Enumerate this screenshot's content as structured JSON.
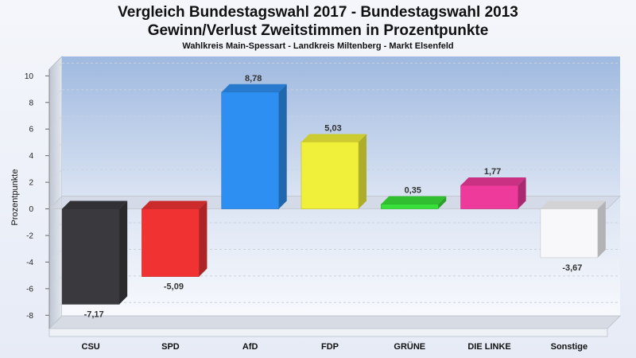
{
  "chart_data": {
    "type": "bar",
    "title_line1": "Vergleich Bundestagswahl 2017 - Bundestagswahl 2013",
    "title_line2": "Gewinn/Verlust Zweitstimmen in Prozentpunkte",
    "subtitle": "Wahlkreis Main-Spessart - Landkreis Miltenberg - Markt Elsenfeld",
    "ylabel": "Prozentpunkte",
    "xlabel": "",
    "ylim": [
      -9,
      10.5
    ],
    "yticks": [
      10,
      8,
      6,
      4,
      2,
      0,
      -2,
      -4,
      -6,
      -8
    ],
    "categories": [
      "CSU",
      "SPD",
      "AfD",
      "FDP",
      "GRÜNE",
      "DIE LINKE",
      "Sonstige"
    ],
    "values": [
      -7.17,
      -5.09,
      8.78,
      5.03,
      0.35,
      1.77,
      -3.67
    ],
    "value_labels": [
      "-7,17",
      "-5,09",
      "8,78",
      "5,03",
      "0,35",
      "1,77",
      "-3,67"
    ],
    "colors": [
      "#3a3a3e",
      "#f03232",
      "#2e8ff2",
      "#f0f03a",
      "#3ae03a",
      "#ee3a9a",
      "#f8f8fb"
    ],
    "grid": true,
    "legend": "none"
  }
}
